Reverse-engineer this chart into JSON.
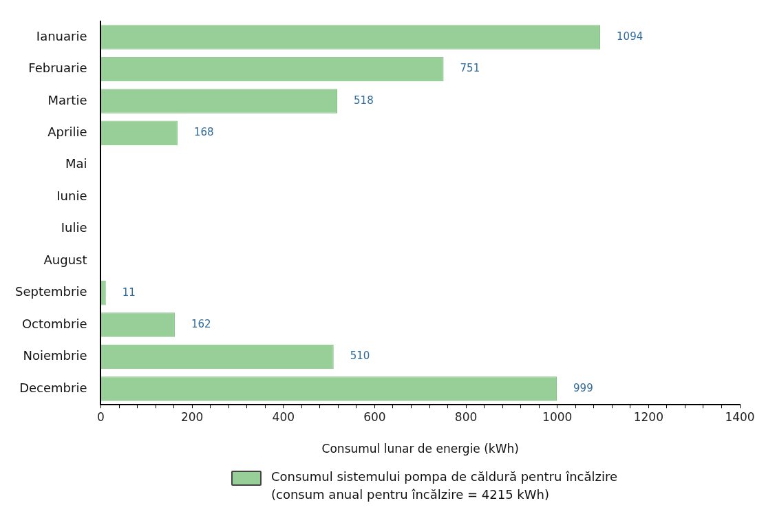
{
  "chart_data": {
    "type": "bar",
    "orientation": "horizontal",
    "xlabel": "Consumul lunar de energie (kWh)",
    "categories": [
      "Ianuarie",
      "Februarie",
      "Martie",
      "Aprilie",
      "Mai",
      "Iunie",
      "Iulie",
      "August",
      "Septembrie",
      "Octombrie",
      "Noiembrie",
      "Decembrie"
    ],
    "series": [
      {
        "name": "Consumul sistemului pompa de căldură pentru încălzire\n(consum anual pentru încălzire = 4215 kWh)",
        "color": "#98cf98",
        "values": [
          1094,
          751,
          518,
          168,
          null,
          null,
          null,
          null,
          11,
          162,
          510,
          999
        ]
      }
    ],
    "xlim": [
      0,
      1400
    ],
    "xticks": [
      0,
      {
        "value": 40,
        "label": null
      },
      {
        "value": 80,
        "label": null
      },
      {
        "value": 120,
        "label": null
      },
      {
        "value": 160,
        "label": null
      },
      200,
      {
        "value": 240,
        "label": null
      },
      {
        "value": 280,
        "label": null
      },
      {
        "value": 320,
        "label": null
      },
      {
        "value": 360,
        "label": null
      },
      400,
      {
        "value": 440,
        "label": null
      },
      {
        "value": 480,
        "label": null
      },
      {
        "value": 520,
        "label": null
      },
      {
        "value": 560,
        "label": null
      },
      600,
      {
        "value": 640,
        "label": null
      },
      {
        "value": 680,
        "label": null
      },
      {
        "value": 720,
        "label": null
      },
      {
        "value": 760,
        "label": null
      },
      800,
      {
        "value": 840,
        "label": null
      },
      {
        "value": 880,
        "label": null
      },
      {
        "value": 920,
        "label": null
      },
      {
        "value": 960,
        "label": null
      },
      1000,
      {
        "value": 1040,
        "label": null
      },
      {
        "value": 1080,
        "label": null
      },
      {
        "value": 1120,
        "label": null
      },
      {
        "value": 1160,
        "label": null
      },
      1200,
      {
        "value": 1240,
        "label": null
      },
      {
        "value": 1280,
        "label": null
      },
      {
        "value": 1320,
        "label": null
      },
      {
        "value": 1360,
        "label": null
      },
      1400
    ],
    "grid": false,
    "legend": "bottom",
    "data_labels": true
  }
}
